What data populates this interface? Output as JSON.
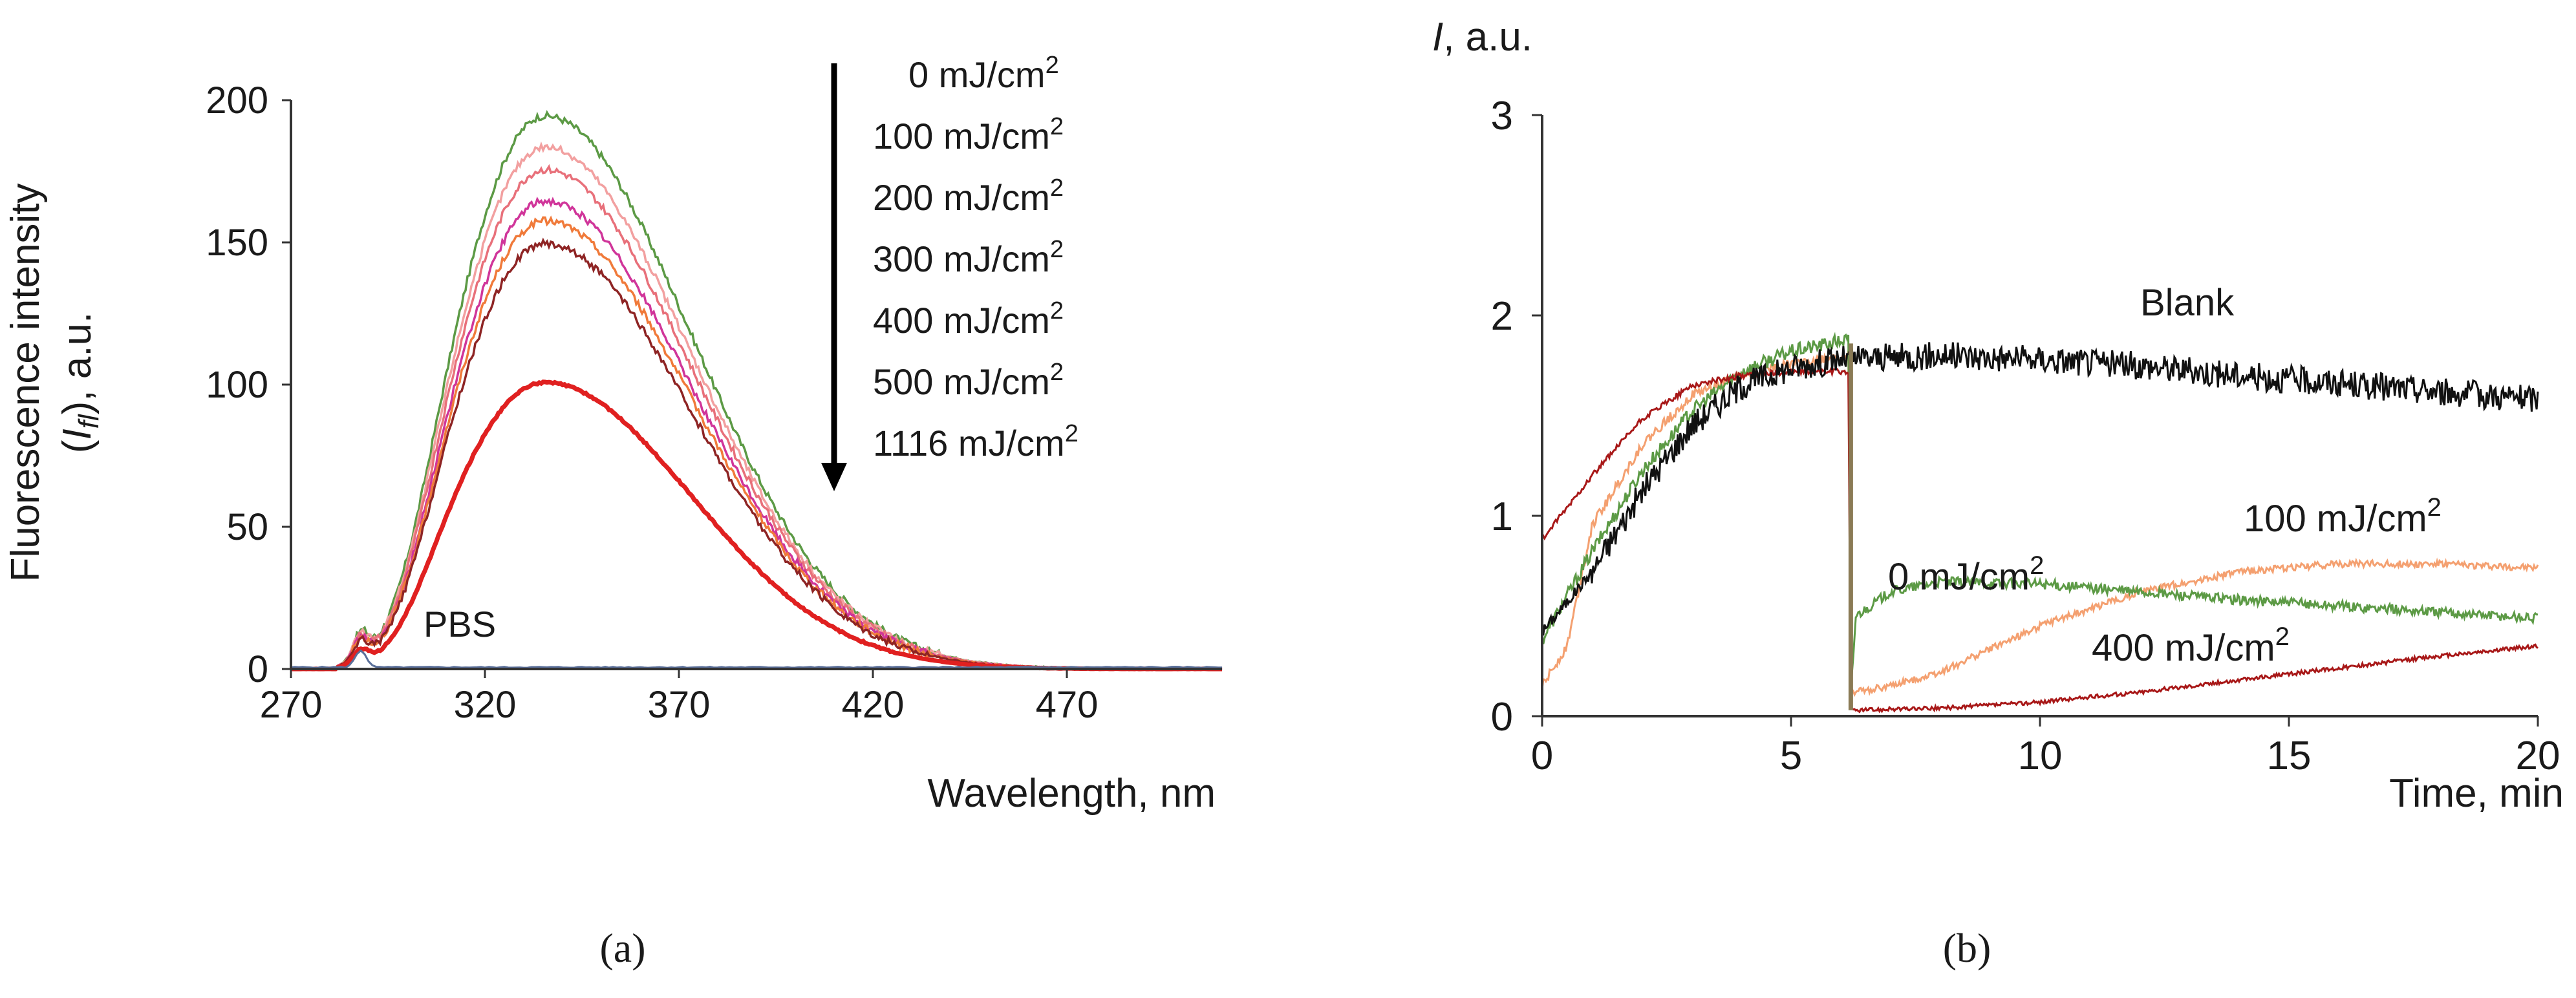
{
  "figure": {
    "panel_a_label": "(a)",
    "panel_b_label": "(b)"
  },
  "chart_data": [
    {
      "id": "a",
      "type": "line",
      "title": "",
      "xlabel": "Wavelength, nm",
      "ylabel_line1": "Fluorescence intensity",
      "ylabel_line2_prefix": "(",
      "ylabel_line2_italic": "I",
      "ylabel_line2_sub": "fl",
      "ylabel_line2_suffix": "), a.u.",
      "xlim": [
        270,
        510
      ],
      "ylim": [
        0,
        200
      ],
      "xticks": [
        270,
        320,
        370,
        420,
        470
      ],
      "yticks": [
        0,
        50,
        100,
        150,
        200
      ],
      "peak_wavelength": 335,
      "grid": false,
      "legend_position": "top-right",
      "legend_arrow": true,
      "pbs_label": "PBS",
      "pbs_color": "#5a6f9a",
      "series": [
        {
          "name": "0 mJ/cm",
          "sup": "2",
          "peak": 195,
          "color": "#5c9a45"
        },
        {
          "name": "100 mJ/cm",
          "sup": "2",
          "peak": 184,
          "color": "#f2a0a0"
        },
        {
          "name": "200 mJ/cm",
          "sup": "2",
          "peak": 176,
          "color": "#e8707a"
        },
        {
          "name": "300 mJ/cm",
          "sup": "2",
          "peak": 165,
          "color": "#d0359a"
        },
        {
          "name": "400 mJ/cm",
          "sup": "2",
          "peak": 158,
          "color": "#f07a3a"
        },
        {
          "name": "500 mJ/cm",
          "sup": "2",
          "peak": 150,
          "color": "#8e2424"
        },
        {
          "name": "1116 mJ/cm",
          "sup": "2",
          "peak": 101,
          "color": "#e02020"
        }
      ]
    },
    {
      "id": "b",
      "type": "line",
      "title": "",
      "xlabel": "Time, min",
      "ylabel_italic": "I",
      "ylabel_rest": ", a.u.",
      "xlim": [
        0,
        20
      ],
      "ylim": [
        0,
        3
      ],
      "xticks": [
        0,
        5,
        10,
        15,
        20
      ],
      "yticks": [
        0,
        1,
        2,
        3
      ],
      "grid": false,
      "drop_time": 6.2,
      "series": [
        {
          "name": "Blank",
          "color": "#111111",
          "points": [
            [
              0,
              0.42
            ],
            [
              1,
              0.72
            ],
            [
              2,
              1.12
            ],
            [
              3,
              1.45
            ],
            [
              4,
              1.65
            ],
            [
              5,
              1.74
            ],
            [
              6,
              1.78
            ],
            [
              8,
              1.8
            ],
            [
              10,
              1.78
            ],
            [
              12,
              1.75
            ],
            [
              14,
              1.7
            ],
            [
              16,
              1.66
            ],
            [
              18,
              1.62
            ],
            [
              20,
              1.58
            ]
          ]
        },
        {
          "name": "0 mJ/cm",
          "sup": "2",
          "color": "#5c9a45",
          "points": [
            [
              0,
              0.38
            ],
            [
              1,
              0.82
            ],
            [
              2,
              1.22
            ],
            [
              3,
              1.52
            ],
            [
              4,
              1.72
            ],
            [
              5,
              1.82
            ],
            [
              6.15,
              1.88
            ],
            [
              6.2,
              0.1
            ],
            [
              6.3,
              0.5
            ],
            [
              7,
              0.62
            ],
            [
              8,
              0.67
            ],
            [
              10,
              0.66
            ],
            [
              12,
              0.62
            ],
            [
              14,
              0.58
            ],
            [
              16,
              0.55
            ],
            [
              18,
              0.52
            ],
            [
              20,
              0.49
            ]
          ]
        },
        {
          "name": "100 mJ/cm",
          "sup": "2",
          "color": "#f4a070",
          "points": [
            [
              0,
              0.15
            ],
            [
              0.5,
              0.35
            ],
            [
              1,
              0.95
            ],
            [
              2,
              1.35
            ],
            [
              3,
              1.6
            ],
            [
              4,
              1.7
            ],
            [
              5,
              1.76
            ],
            [
              6.15,
              1.8
            ],
            [
              6.2,
              0.12
            ],
            [
              7,
              0.15
            ],
            [
              8,
              0.22
            ],
            [
              10,
              0.45
            ],
            [
              12,
              0.62
            ],
            [
              14,
              0.72
            ],
            [
              16,
              0.76
            ],
            [
              18,
              0.76
            ],
            [
              20,
              0.74
            ]
          ]
        },
        {
          "name": "400 mJ/cm",
          "sup": "2",
          "color": "#a81818",
          "points": [
            [
              0,
              0.88
            ],
            [
              1,
              1.2
            ],
            [
              2,
              1.48
            ],
            [
              3,
              1.65
            ],
            [
              4,
              1.7
            ],
            [
              5,
              1.72
            ],
            [
              6.15,
              1.72
            ],
            [
              6.2,
              0.03
            ],
            [
              8,
              0.04
            ],
            [
              10,
              0.07
            ],
            [
              12,
              0.12
            ],
            [
              14,
              0.18
            ],
            [
              16,
              0.24
            ],
            [
              18,
              0.3
            ],
            [
              20,
              0.35
            ]
          ]
        }
      ]
    }
  ]
}
